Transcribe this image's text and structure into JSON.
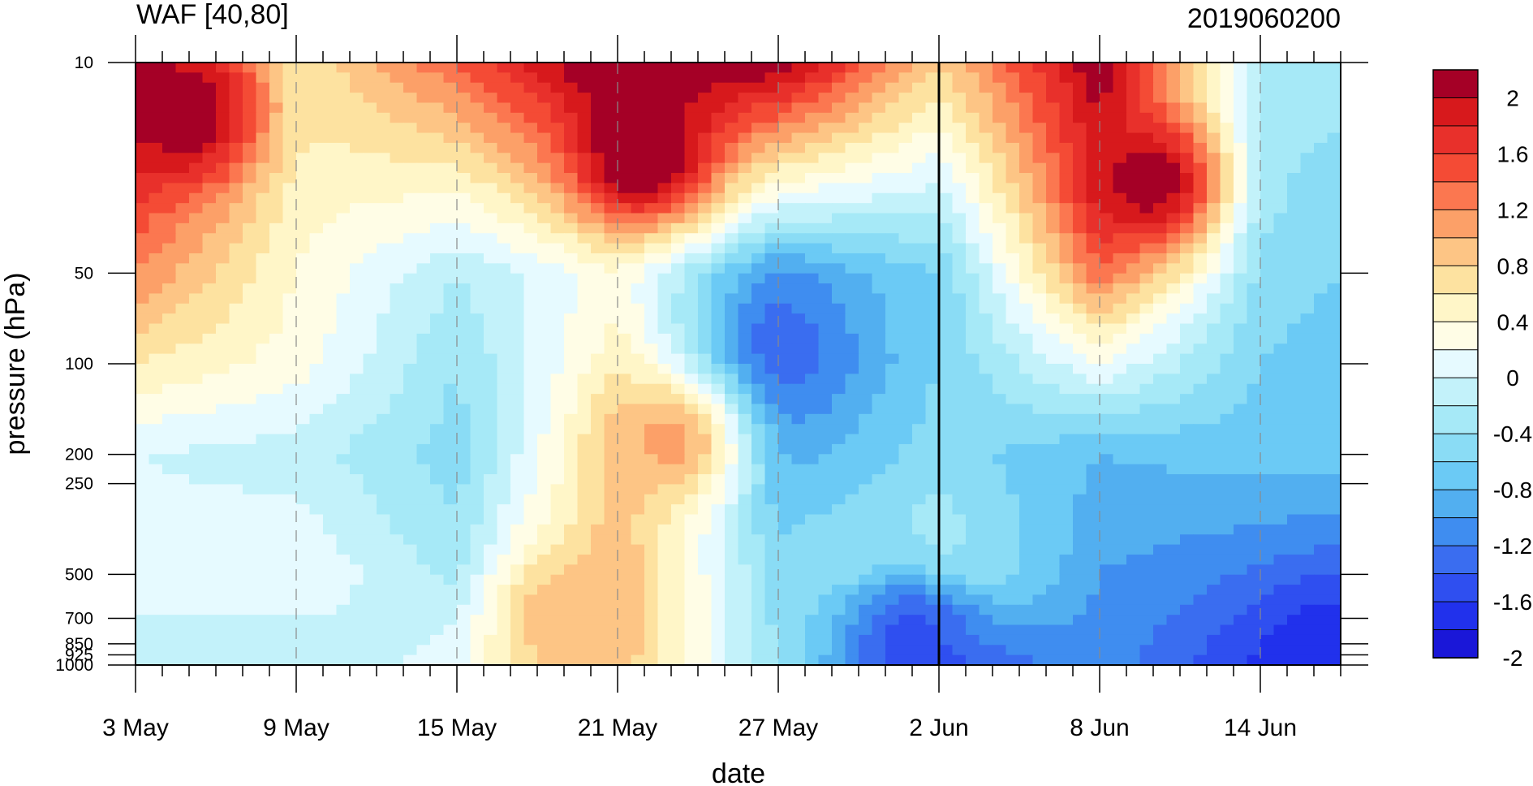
{
  "chart_data": {
    "type": "heatmap",
    "subtype": "filled-contour",
    "title_left": "WAF [40,80]",
    "title_right": "2019060200",
    "xlabel": "date",
    "ylabel": "pressure (hPa)",
    "x_ticks": [
      "3 May",
      "9 May",
      "15 May",
      "21 May",
      "27 May",
      "2 Jun",
      "8 Jun",
      "14 Jun"
    ],
    "x_range": [
      "3 May",
      "17 Jun"
    ],
    "y_scale": "log (reversed)",
    "y_ticks": [
      10,
      50,
      100,
      200,
      250,
      500,
      700,
      850,
      925,
      1000
    ],
    "y_tick_labels": [
      "10",
      "50",
      "100",
      "200",
      "250",
      "500",
      "700",
      "850",
      "925",
      "1000"
    ],
    "ylim": [
      1000,
      10
    ],
    "reference_line": "2 Jun",
    "colorbar": {
      "labels": [
        "2",
        "1.6",
        "1.2",
        "0.8",
        "0.4",
        "0",
        "-0.4",
        "-0.8",
        "-1.2",
        "-1.6",
        "-2"
      ],
      "colors": [
        "#a50026",
        "#d7191c",
        "#e8302b",
        "#f44b35",
        "#fb7750",
        "#fca068",
        "#fdc585",
        "#fde2a0",
        "#fff6c8",
        "#fffde6",
        "#e6faff",
        "#c3f2fa",
        "#a6e9f7",
        "#8adcf5",
        "#6bcaf5",
        "#52aff0",
        "#3f8df0",
        "#3a6df0",
        "#2f4ff0",
        "#2131ec",
        "#1a17d8"
      ]
    },
    "field_grid": {
      "x": [
        "3 May",
        "9 May",
        "15 May",
        "21 May",
        "27 May",
        "2 Jun",
        "8 Jun",
        "14 Jun",
        "17 Jun"
      ],
      "y_hPa": [
        10,
        50,
        100,
        200,
        500,
        1000
      ],
      "values": [
        [
          2.2,
          0.6,
          1.4,
          2.4,
          2.2,
          0.8,
          2.2,
          -0.3,
          -0.3
        ],
        [
          1.2,
          0.4,
          -0.2,
          0.3,
          -1.0,
          -0.6,
          1.3,
          -0.5,
          -0.6
        ],
        [
          0.6,
          0.3,
          -0.4,
          0.5,
          -1.2,
          -0.6,
          0.2,
          -0.6,
          -0.7
        ],
        [
          0.0,
          -0.1,
          -0.5,
          0.8,
          -0.9,
          -0.5,
          -0.8,
          -0.7,
          -0.7
        ],
        [
          0.1,
          0.2,
          -0.3,
          1.0,
          -0.5,
          -0.1,
          -1.0,
          -1.2,
          -1.3
        ],
        [
          -0.1,
          -0.2,
          0.1,
          0.9,
          -0.4,
          -1.4,
          -1.1,
          -1.6,
          -1.7
        ]
      ]
    },
    "features": [
      {
        "date": "5 May",
        "hPa": 15,
        "value": 2.2
      },
      {
        "date": "22 May",
        "hPa": 20,
        "value": 2.4
      },
      {
        "date": "10 Jun",
        "hPa": 25,
        "value": 2.2
      },
      {
        "date": "27 May",
        "hPa": 90,
        "value": -1.3
      },
      {
        "date": "1 Jun",
        "hPa": 800,
        "value": -1.5
      },
      {
        "date": "16 Jun",
        "hPa": 900,
        "value": -1.7
      },
      {
        "date": "19 May",
        "hPa": 700,
        "value": 1.0
      },
      {
        "date": "23 May",
        "hPa": 180,
        "value": 1.1
      }
    ]
  }
}
